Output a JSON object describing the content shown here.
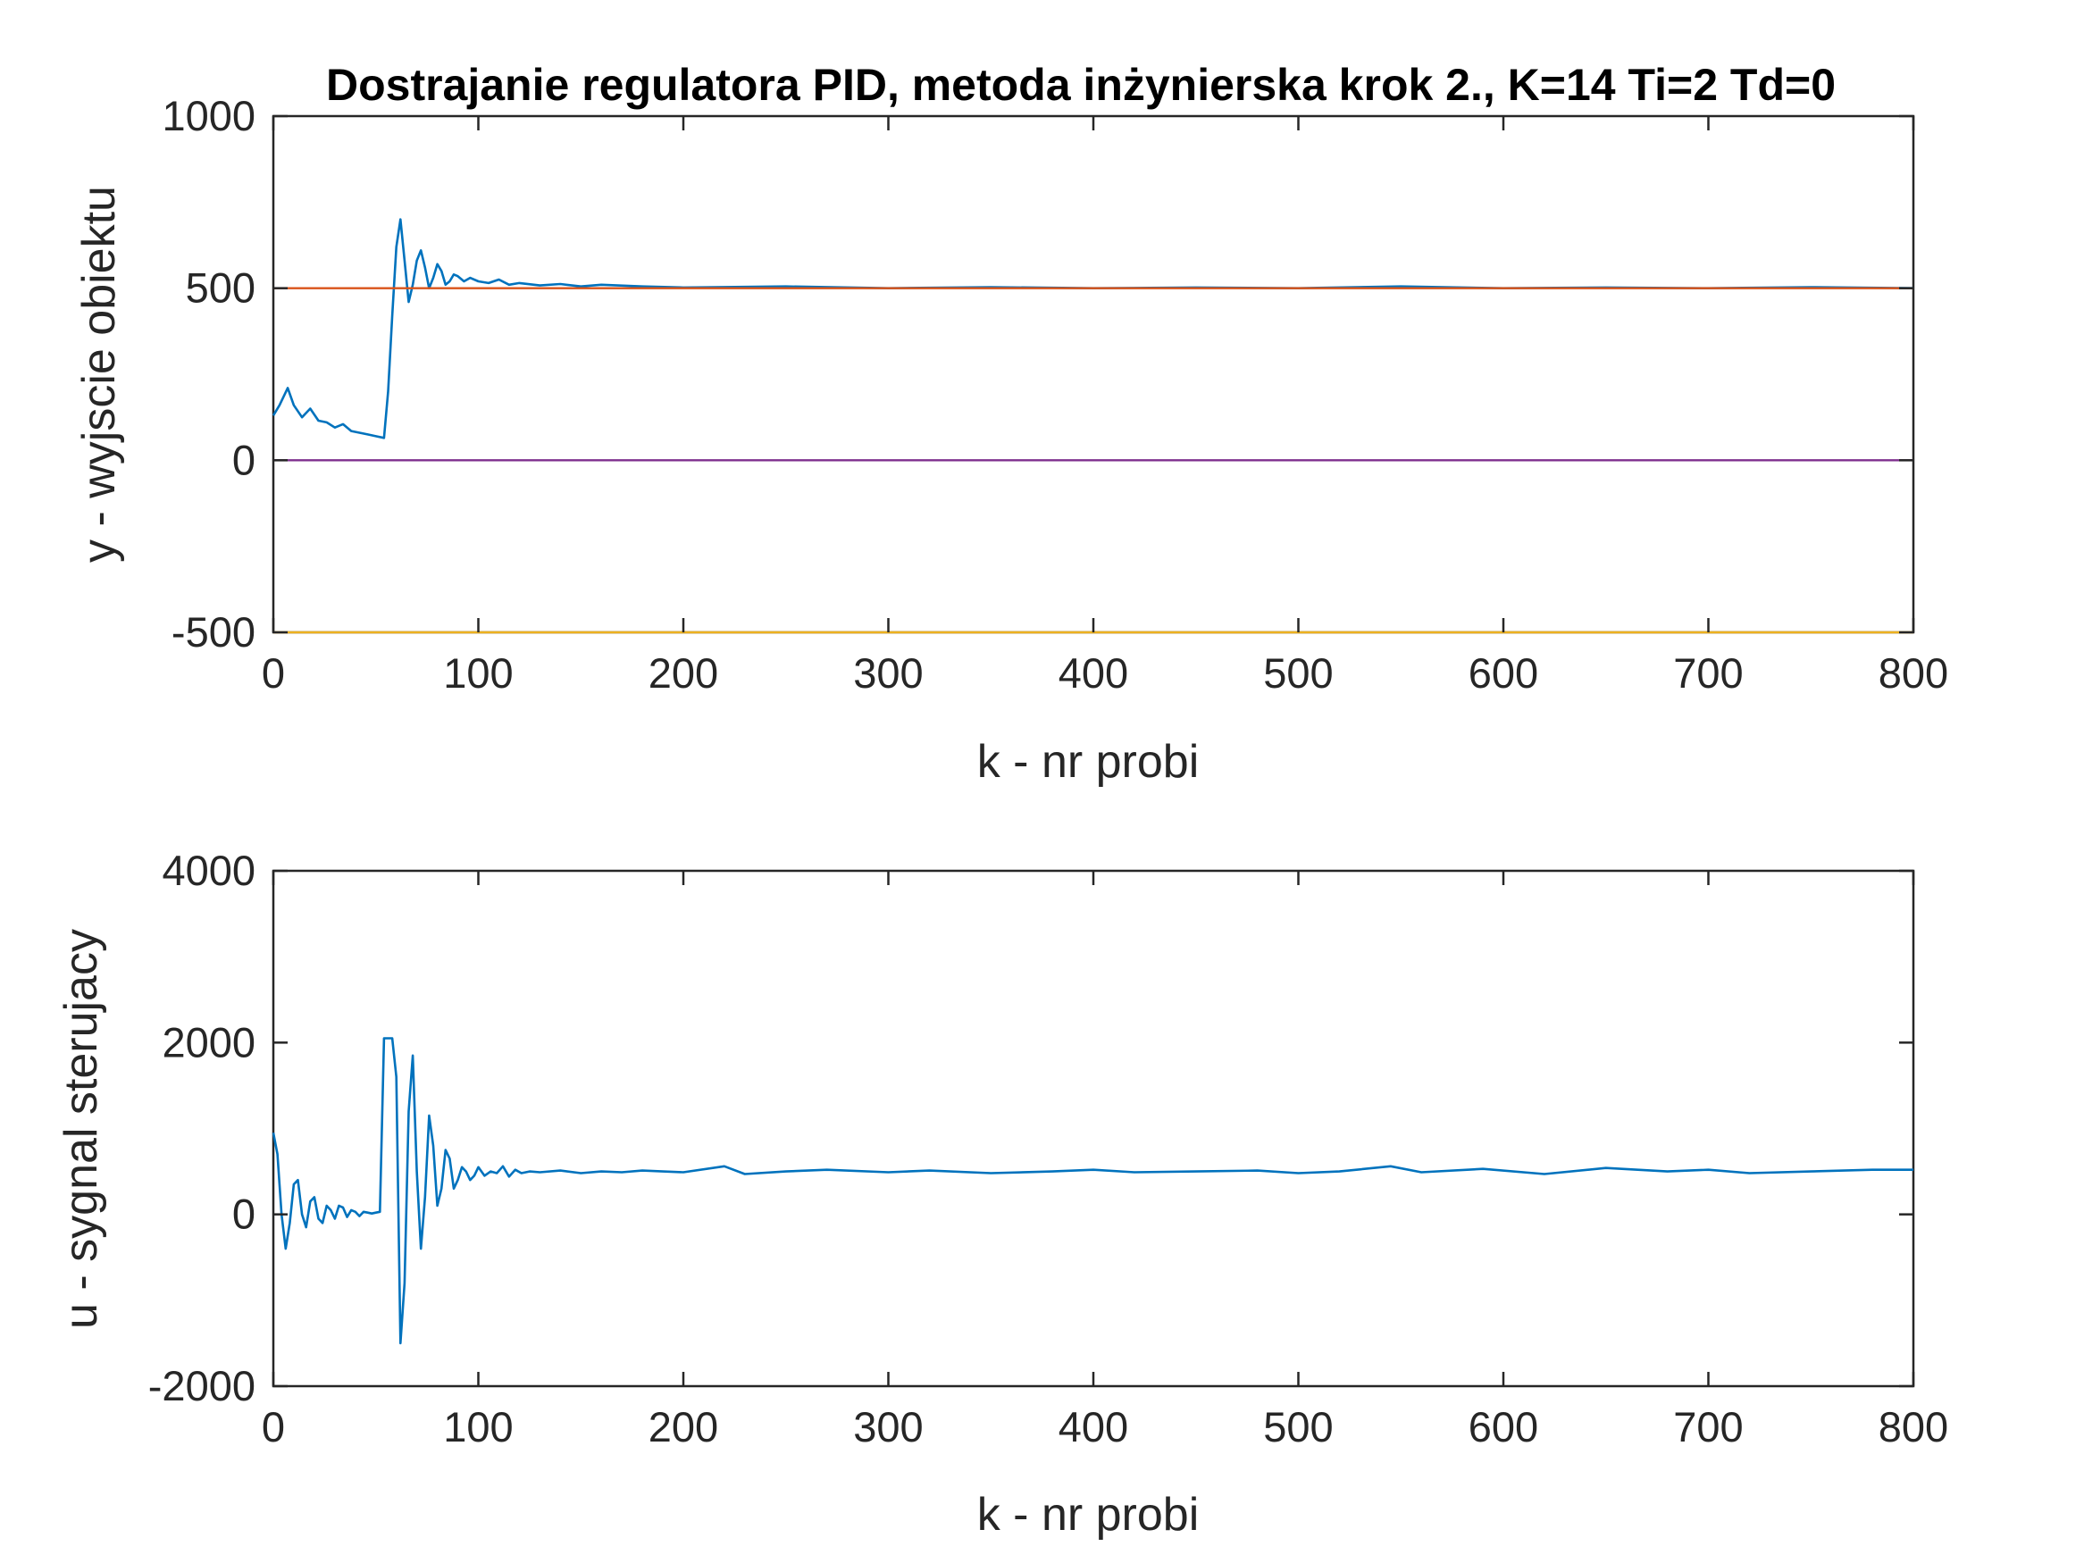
{
  "chart_data": [
    {
      "type": "line",
      "title": "Dostrajanie regulatora PID, metoda inżynierska krok 2., K=14 Ti=2 Td=0",
      "xlabel": "k - nr probi",
      "ylabel": "y - wyjscie obiektu",
      "xlim": [
        0,
        800
      ],
      "ylim": [
        -500,
        1000
      ],
      "xticks": [
        "0",
        "100",
        "200",
        "300",
        "400",
        "500",
        "600",
        "700",
        "800"
      ],
      "yticks": [
        "-500",
        "0",
        "500",
        "1000"
      ],
      "grid": false,
      "series": [
        {
          "color": "#0072bd",
          "x": [
            0,
            3,
            7,
            10,
            14,
            18,
            22,
            26,
            30,
            34,
            38,
            42,
            46,
            50,
            54,
            56,
            58,
            60,
            62,
            64,
            66,
            68,
            70,
            72,
            74,
            76,
            78,
            80,
            82,
            84,
            86,
            88,
            90,
            93,
            96,
            100,
            105,
            110,
            115,
            120,
            130,
            140,
            150,
            160,
            180,
            200,
            250,
            300,
            350,
            400,
            450,
            500,
            550,
            600,
            650,
            700,
            750,
            800
          ],
          "y": [
            130,
            160,
            210,
            160,
            125,
            150,
            115,
            110,
            95,
            105,
            85,
            80,
            75,
            70,
            65,
            200,
            420,
            620,
            700,
            580,
            460,
            510,
            580,
            610,
            560,
            500,
            530,
            570,
            550,
            510,
            520,
            540,
            535,
            520,
            530,
            520,
            515,
            525,
            510,
            515,
            508,
            512,
            505,
            510,
            505,
            502,
            505,
            500,
            503,
            500,
            502,
            500,
            505,
            500,
            502,
            500,
            503,
            500
          ]
        },
        {
          "color": "#d95319",
          "x": [
            0,
            800
          ],
          "y": [
            500,
            500
          ]
        },
        {
          "color": "#edb120",
          "x": [
            0,
            800
          ],
          "y": [
            -500,
            -500
          ]
        },
        {
          "color": "#7e2f8e",
          "x": [
            0,
            800
          ],
          "y": [
            0,
            0
          ]
        }
      ]
    },
    {
      "type": "line",
      "xlabel": "k - nr probi",
      "ylabel": "u - sygnal sterujacy",
      "xlim": [
        0,
        800
      ],
      "ylim": [
        -2000,
        4000
      ],
      "xticks": [
        "0",
        "100",
        "200",
        "300",
        "400",
        "500",
        "600",
        "700",
        "800"
      ],
      "yticks": [
        "-2000",
        "0",
        "2000",
        "4000"
      ],
      "grid": false,
      "series": [
        {
          "color": "#0072bd",
          "x": [
            0,
            2,
            4,
            6,
            8,
            10,
            12,
            14,
            16,
            18,
            20,
            22,
            24,
            26,
            28,
            30,
            32,
            34,
            36,
            38,
            40,
            42,
            44,
            46,
            48,
            50,
            52,
            54,
            56,
            58,
            60,
            62,
            64,
            66,
            68,
            70,
            72,
            74,
            76,
            78,
            80,
            82,
            84,
            86,
            88,
            90,
            92,
            94,
            96,
            98,
            100,
            103,
            106,
            109,
            112,
            115,
            118,
            121,
            125,
            130,
            140,
            150,
            160,
            170,
            180,
            190,
            200,
            220,
            230,
            250,
            270,
            300,
            320,
            350,
            380,
            400,
            420,
            450,
            480,
            500,
            520,
            545,
            560,
            590,
            620,
            650,
            680,
            700,
            720,
            750,
            780,
            800
          ],
          "y": [
            950,
            700,
            0,
            -400,
            -100,
            350,
            400,
            0,
            -150,
            150,
            200,
            -50,
            -100,
            100,
            50,
            -50,
            100,
            80,
            -30,
            50,
            30,
            -20,
            30,
            20,
            10,
            20,
            30,
            2050,
            2050,
            2050,
            1600,
            -1500,
            -800,
            1200,
            1850,
            500,
            -400,
            200,
            1150,
            800,
            100,
            300,
            750,
            650,
            300,
            400,
            550,
            500,
            400,
            450,
            550,
            450,
            500,
            480,
            560,
            440,
            520,
            480,
            500,
            490,
            510,
            480,
            500,
            490,
            510,
            500,
            490,
            560,
            470,
            500,
            520,
            490,
            510,
            480,
            500,
            520,
            490,
            500,
            510,
            480,
            500,
            560,
            490,
            530,
            470,
            540,
            500,
            520,
            480,
            500,
            520,
            520
          ]
        }
      ]
    }
  ]
}
